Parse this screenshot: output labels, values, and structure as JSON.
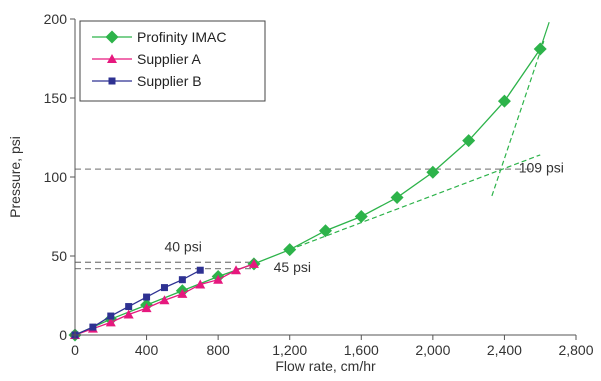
{
  "chart_data": {
    "type": "line",
    "title": "",
    "xlabel": "Flow rate, cm/hr",
    "ylabel": "Pressure, psi",
    "xlim": [
      0,
      2800
    ],
    "ylim": [
      0,
      200
    ],
    "x_ticks": [
      0,
      400,
      800,
      1200,
      1600,
      2000,
      2400,
      2800
    ],
    "x_tick_labels": [
      "0",
      "400",
      "800",
      "1,200",
      "1,600",
      "2,000",
      "2,400",
      "2,800"
    ],
    "y_ticks": [
      0,
      50,
      100,
      150,
      200
    ],
    "y_tick_labels": [
      "0",
      "50",
      "100",
      "150",
      "200"
    ],
    "grid": false,
    "legend_position": "top-left",
    "series": [
      {
        "name": "Profinity IMAC",
        "color": "#2db34a",
        "marker": "diamond",
        "x": [
          0,
          200,
          400,
          600,
          800,
          1000,
          1200,
          1400,
          1600,
          1800,
          2000,
          2200,
          2400,
          2600
        ],
        "y": [
          0,
          10,
          19,
          28,
          37,
          45,
          54,
          66,
          75,
          87,
          103,
          123,
          148,
          181
        ]
      },
      {
        "name": "Supplier A",
        "color": "#e6187e",
        "marker": "triangle",
        "x": [
          0,
          100,
          200,
          300,
          400,
          500,
          600,
          700,
          800,
          900,
          1000
        ],
        "y": [
          0,
          4,
          8,
          13,
          17,
          22,
          26,
          32,
          35,
          41,
          45
        ]
      },
      {
        "name": "Supplier B",
        "color": "#2e3192",
        "marker": "square",
        "x": [
          0,
          100,
          200,
          300,
          400,
          500,
          600,
          700
        ],
        "y": [
          0,
          5,
          12,
          18,
          24,
          30,
          35,
          41
        ]
      }
    ],
    "extra_lines": [
      {
        "kind": "trend-curve",
        "color": "#2db34a",
        "style": "solid",
        "x": [
          2600,
          2650
        ],
        "y": [
          181,
          198
        ]
      },
      {
        "kind": "trend",
        "color": "#2db34a",
        "style": "dashed",
        "x": [
          1200,
          2600
        ],
        "y": [
          54,
          114
        ]
      },
      {
        "kind": "trend",
        "color": "#2db34a",
        "style": "dashed",
        "x": [
          2330,
          2620
        ],
        "y": [
          88,
          186
        ]
      },
      {
        "kind": "reference",
        "color": "#888888",
        "style": "dashed",
        "x": [
          0,
          2550
        ],
        "y": [
          105,
          105
        ]
      },
      {
        "kind": "reference",
        "color": "#888888",
        "style": "dashed",
        "x": [
          0,
          1000
        ],
        "y": [
          46,
          46
        ]
      },
      {
        "kind": "reference",
        "color": "#888888",
        "style": "dashed",
        "x": [
          0,
          1000
        ],
        "y": [
          42,
          42
        ]
      }
    ],
    "annotations": [
      {
        "text": "109 psi",
        "x": 2480,
        "y": 103
      },
      {
        "text": "40 psi",
        "x": 500,
        "y": 53
      },
      {
        "text": "45 psi",
        "x": 1110,
        "y": 40
      }
    ]
  }
}
